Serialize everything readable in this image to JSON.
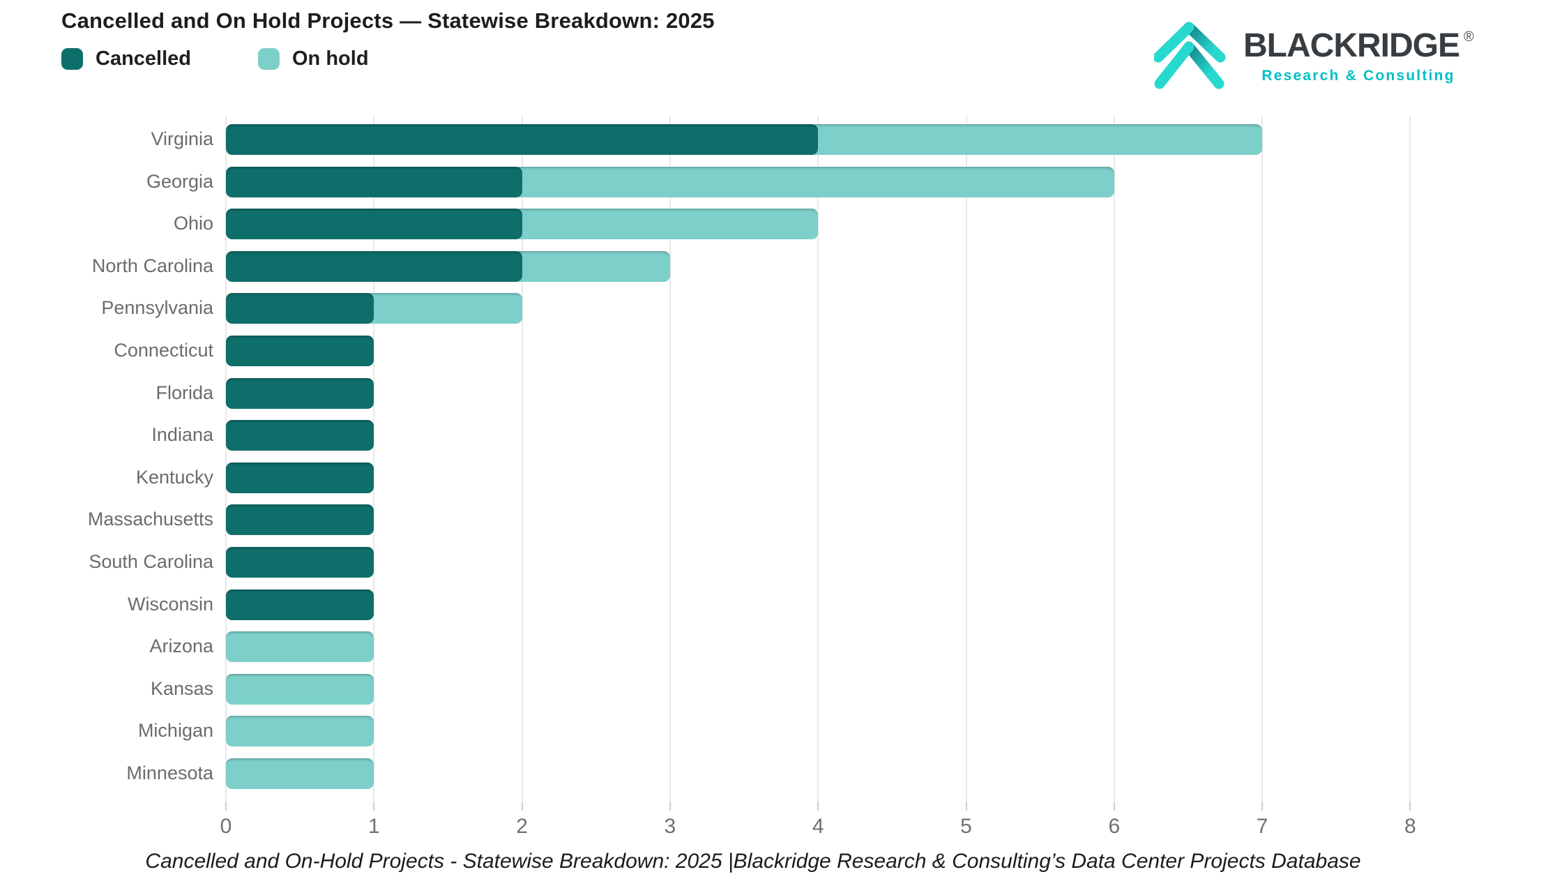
{
  "header": {
    "title": "Cancelled and On Hold Projects — Statewise Breakdown: 2025"
  },
  "legend": {
    "items": [
      {
        "label": "Cancelled",
        "color": "#0E6E6A"
      },
      {
        "label": "On hold",
        "color": "#7DCFCA"
      }
    ]
  },
  "logo": {
    "wordmark": "BLACKRIDGE",
    "registered": "®",
    "subtitle": "Research & Consulting",
    "icon": "double-chevron-up",
    "teal_bright": "#27D8CF",
    "teal_dark": "#16808A",
    "wordmark_color": "#373D40"
  },
  "caption": "Cancelled and On-Hold Projects - Statewise Breakdown: 2025 |Blackridge Research & Consulting’s Data Center Projects Database",
  "chart_data": {
    "type": "bar",
    "orientation": "horizontal",
    "stacked": true,
    "title": "Cancelled and On Hold Projects — Statewise Breakdown: 2025",
    "categories": [
      "Virginia",
      "Georgia",
      "Ohio",
      "North Carolina",
      "Pennsylvania",
      "Connecticut",
      "Florida",
      "Indiana",
      "Kentucky",
      "Massachusetts",
      "South Carolina",
      "Wisconsin",
      "Arizona",
      "Kansas",
      "Michigan",
      "Minnesota"
    ],
    "series": [
      {
        "name": "Cancelled",
        "color": "#0E6E6A",
        "values": [
          4,
          2,
          2,
          2,
          1,
          1,
          1,
          1,
          1,
          1,
          1,
          1,
          0,
          0,
          0,
          0
        ]
      },
      {
        "name": "On hold",
        "color": "#7DCFCA",
        "values": [
          3,
          4,
          2,
          1,
          1,
          0,
          0,
          0,
          0,
          0,
          0,
          0,
          1,
          1,
          1,
          1
        ]
      }
    ],
    "totals": [
      7,
      6,
      4,
      3,
      2,
      1,
      1,
      1,
      1,
      1,
      1,
      1,
      1,
      1,
      1,
      1
    ],
    "xlabel": "",
    "ylabel": "",
    "xlim": [
      0,
      8
    ],
    "xticks": [
      "0",
      "1",
      "2",
      "3",
      "4",
      "5",
      "6",
      "7",
      "8"
    ],
    "grid": true,
    "legend_position": "top-left"
  }
}
